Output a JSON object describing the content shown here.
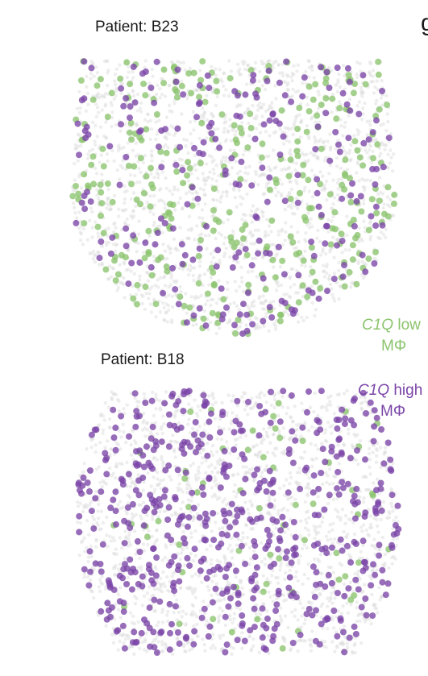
{
  "panel_letter": "g",
  "legend": {
    "low_gene": "C1Q",
    "low_suffix": " low",
    "low_cell": "MΦ",
    "high_gene": "C1Q",
    "high_suffix": " high",
    "high_cell": "MΦ"
  },
  "colors": {
    "low": "#8cc46e",
    "high": "#7b45a8",
    "background_cells": "#d9d9d9",
    "text": "#1a1a1a"
  },
  "chart_data": [
    {
      "type": "scatter",
      "title": "Patient: B23",
      "series": [
        {
          "name": "C1Q low MΦ",
          "color": "#8cc46e",
          "approx_points": 320
        },
        {
          "name": "C1Q high MΦ",
          "color": "#7b45a8",
          "approx_points": 230
        }
      ],
      "background": "spatial tissue section (grey cells)",
      "grid": false,
      "legend_position": "right"
    },
    {
      "type": "scatter",
      "title": "Patient: B18",
      "series": [
        {
          "name": "C1Q low MΦ",
          "color": "#8cc46e",
          "approx_points": 60
        },
        {
          "name": "C1Q high MΦ",
          "color": "#7b45a8",
          "approx_points": 560
        }
      ],
      "background": "spatial tissue section (grey cells)",
      "grid": false,
      "legend_position": "right"
    }
  ]
}
